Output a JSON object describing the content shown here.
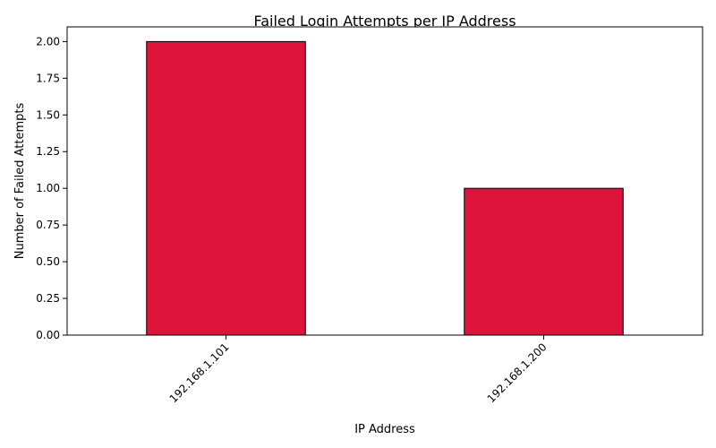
{
  "chart_data": {
    "type": "bar",
    "title": "Failed Login Attempts per IP Address",
    "xlabel": "IP Address",
    "ylabel": "Number of Failed Attempts",
    "categories": [
      "192.168.1.101",
      "192.168.1.200"
    ],
    "values": [
      2,
      1
    ],
    "ylim": [
      0,
      2.1
    ],
    "yticks": [
      "0.00",
      "0.25",
      "0.50",
      "0.75",
      "1.00",
      "1.25",
      "1.50",
      "1.75",
      "2.00"
    ],
    "bar_color": "#DC143C",
    "bar_edge_color": "#000000",
    "grid": false,
    "legend": "none"
  }
}
